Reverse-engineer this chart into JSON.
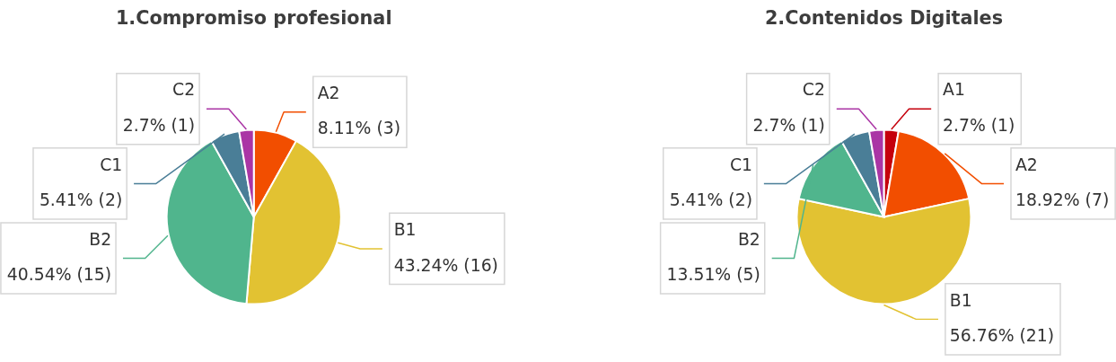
{
  "chart_data": [
    {
      "type": "pie",
      "title": "1.Compromiso profesional",
      "categories": [
        "A2",
        "B1",
        "B2",
        "C1",
        "C2"
      ],
      "values": [
        3,
        16,
        15,
        2,
        1
      ],
      "colors": [
        "#f24e00",
        "#e2c232",
        "#50b58d",
        "#4a7e97",
        "#aa35a5"
      ],
      "value_labels": [
        "8.11% (3)",
        "43.24% (16)",
        "40.54% (15)",
        "5.41% (2)",
        "2.7% (1)"
      ]
    },
    {
      "type": "pie",
      "title": "2.Contenidos Digitales",
      "categories": [
        "A1",
        "A2",
        "B1",
        "B2",
        "C1",
        "C2"
      ],
      "values": [
        1,
        7,
        21,
        5,
        2,
        1
      ],
      "colors": [
        "#c5000c",
        "#f24e00",
        "#e2c232",
        "#50b58d",
        "#4a7e97",
        "#aa35a5"
      ],
      "value_labels": [
        "2.7% (1)",
        "18.92% (7)",
        "56.76% (21)",
        "13.51% (5)",
        "5.41% (2)",
        "2.7% (1)"
      ]
    }
  ]
}
